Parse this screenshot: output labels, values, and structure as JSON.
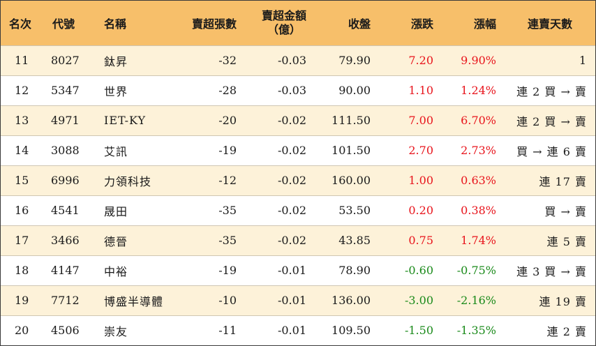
{
  "headers": {
    "rank": "名次",
    "code": "代號",
    "name": "名稱",
    "net_sell_volume": "賣超張數",
    "net_sell_amount_line1": "賣超金額",
    "net_sell_amount_line2": "（億）",
    "close": "收盤",
    "change": "漲跌",
    "change_pct": "漲幅",
    "streak": "連賣天數"
  },
  "colors": {
    "header_bg": "#f7bf6a",
    "row_alt_bg": "#fdf2d9",
    "up": "#e8141c",
    "down": "#1a8a1a"
  },
  "rows": [
    {
      "rank": "11",
      "code": "8027",
      "name": "鈦昇",
      "vol": "-32",
      "amt": "-0.03",
      "close": "79.90",
      "chg": "7.20",
      "pct": "9.90%",
      "dir": "up",
      "streak": "1"
    },
    {
      "rank": "12",
      "code": "5347",
      "name": "世界",
      "vol": "-28",
      "amt": "-0.03",
      "close": "90.00",
      "chg": "1.10",
      "pct": "1.24%",
      "dir": "up",
      "streak": "連 2 買 → 賣"
    },
    {
      "rank": "13",
      "code": "4971",
      "name": "IET-KY",
      "vol": "-20",
      "amt": "-0.02",
      "close": "111.50",
      "chg": "7.00",
      "pct": "6.70%",
      "dir": "up",
      "streak": "連 2 買 → 賣"
    },
    {
      "rank": "14",
      "code": "3088",
      "name": "艾訊",
      "vol": "-19",
      "amt": "-0.02",
      "close": "101.50",
      "chg": "2.70",
      "pct": "2.73%",
      "dir": "up",
      "streak": "買 → 連 6 賣"
    },
    {
      "rank": "15",
      "code": "6996",
      "name": "力領科技",
      "vol": "-12",
      "amt": "-0.02",
      "close": "160.00",
      "chg": "1.00",
      "pct": "0.63%",
      "dir": "up",
      "streak": "連 17 賣"
    },
    {
      "rank": "16",
      "code": "4541",
      "name": "晟田",
      "vol": "-35",
      "amt": "-0.02",
      "close": "53.50",
      "chg": "0.20",
      "pct": "0.38%",
      "dir": "up",
      "streak": "買 → 賣"
    },
    {
      "rank": "17",
      "code": "3466",
      "name": "德晉",
      "vol": "-35",
      "amt": "-0.02",
      "close": "43.85",
      "chg": "0.75",
      "pct": "1.74%",
      "dir": "up",
      "streak": "連 5 賣"
    },
    {
      "rank": "18",
      "code": "4147",
      "name": "中裕",
      "vol": "-19",
      "amt": "-0.01",
      "close": "78.90",
      "chg": "-0.60",
      "pct": "-0.75%",
      "dir": "down",
      "streak": "連 3 買 → 賣"
    },
    {
      "rank": "19",
      "code": "7712",
      "name": "博盛半導體",
      "vol": "-10",
      "amt": "-0.01",
      "close": "136.00",
      "chg": "-3.00",
      "pct": "-2.16%",
      "dir": "down",
      "streak": "連 19 賣"
    },
    {
      "rank": "20",
      "code": "4506",
      "name": "崇友",
      "vol": "-11",
      "amt": "-0.01",
      "close": "109.50",
      "chg": "-1.50",
      "pct": "-1.35%",
      "dir": "down",
      "streak": "連 2 賣"
    }
  ]
}
